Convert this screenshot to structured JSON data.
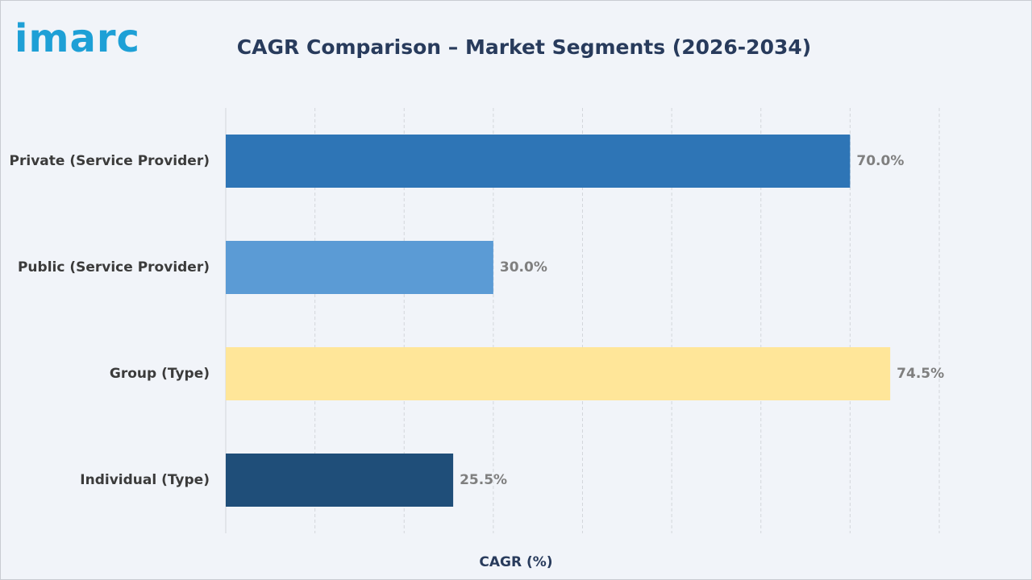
{
  "logo": {
    "text": "imarc",
    "color": "#1ea0d6"
  },
  "chart_data": {
    "type": "bar",
    "orientation": "horizontal",
    "title": "CAGR Comparison – Market Segments (2026-2034)",
    "xlabel": "CAGR (%)",
    "ylabel": "",
    "categories": [
      "Private (Service Provider)",
      "Public (Service Provider)",
      "Group (Type)",
      "Individual (Type)"
    ],
    "values": [
      70.0,
      30.0,
      74.5,
      25.5
    ],
    "value_labels": [
      "70.0%",
      "30.0%",
      "74.5%",
      "25.5%"
    ],
    "colors": [
      "#2e75b6",
      "#5b9bd5",
      "#ffe699",
      "#1f4e79"
    ],
    "xlim": [
      0,
      80
    ],
    "grid": true,
    "x_tick_labels_visible": false
  }
}
